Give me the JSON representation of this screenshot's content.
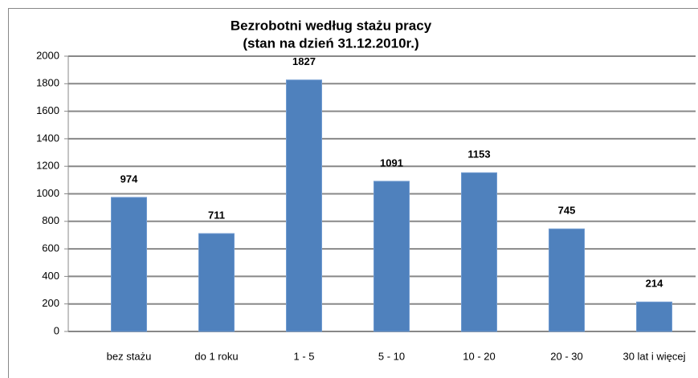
{
  "chart_data": {
    "type": "bar",
    "title": "Bezrobotni według stażu pracy",
    "subtitle": "(stan na dzień 31.12.2010r.)",
    "categories": [
      "bez stażu",
      "do 1 roku",
      "1 - 5",
      "5 - 10",
      "10 - 20",
      "20 - 30",
      "30 lat i więcej"
    ],
    "values": [
      974,
      711,
      1827,
      1091,
      1153,
      745,
      214
    ],
    "color": "#4f81bd",
    "ylim": [
      0,
      2000
    ],
    "yticks": [
      0,
      200,
      400,
      600,
      800,
      1000,
      1200,
      1400,
      1600,
      1800,
      2000
    ],
    "grid": true
  }
}
